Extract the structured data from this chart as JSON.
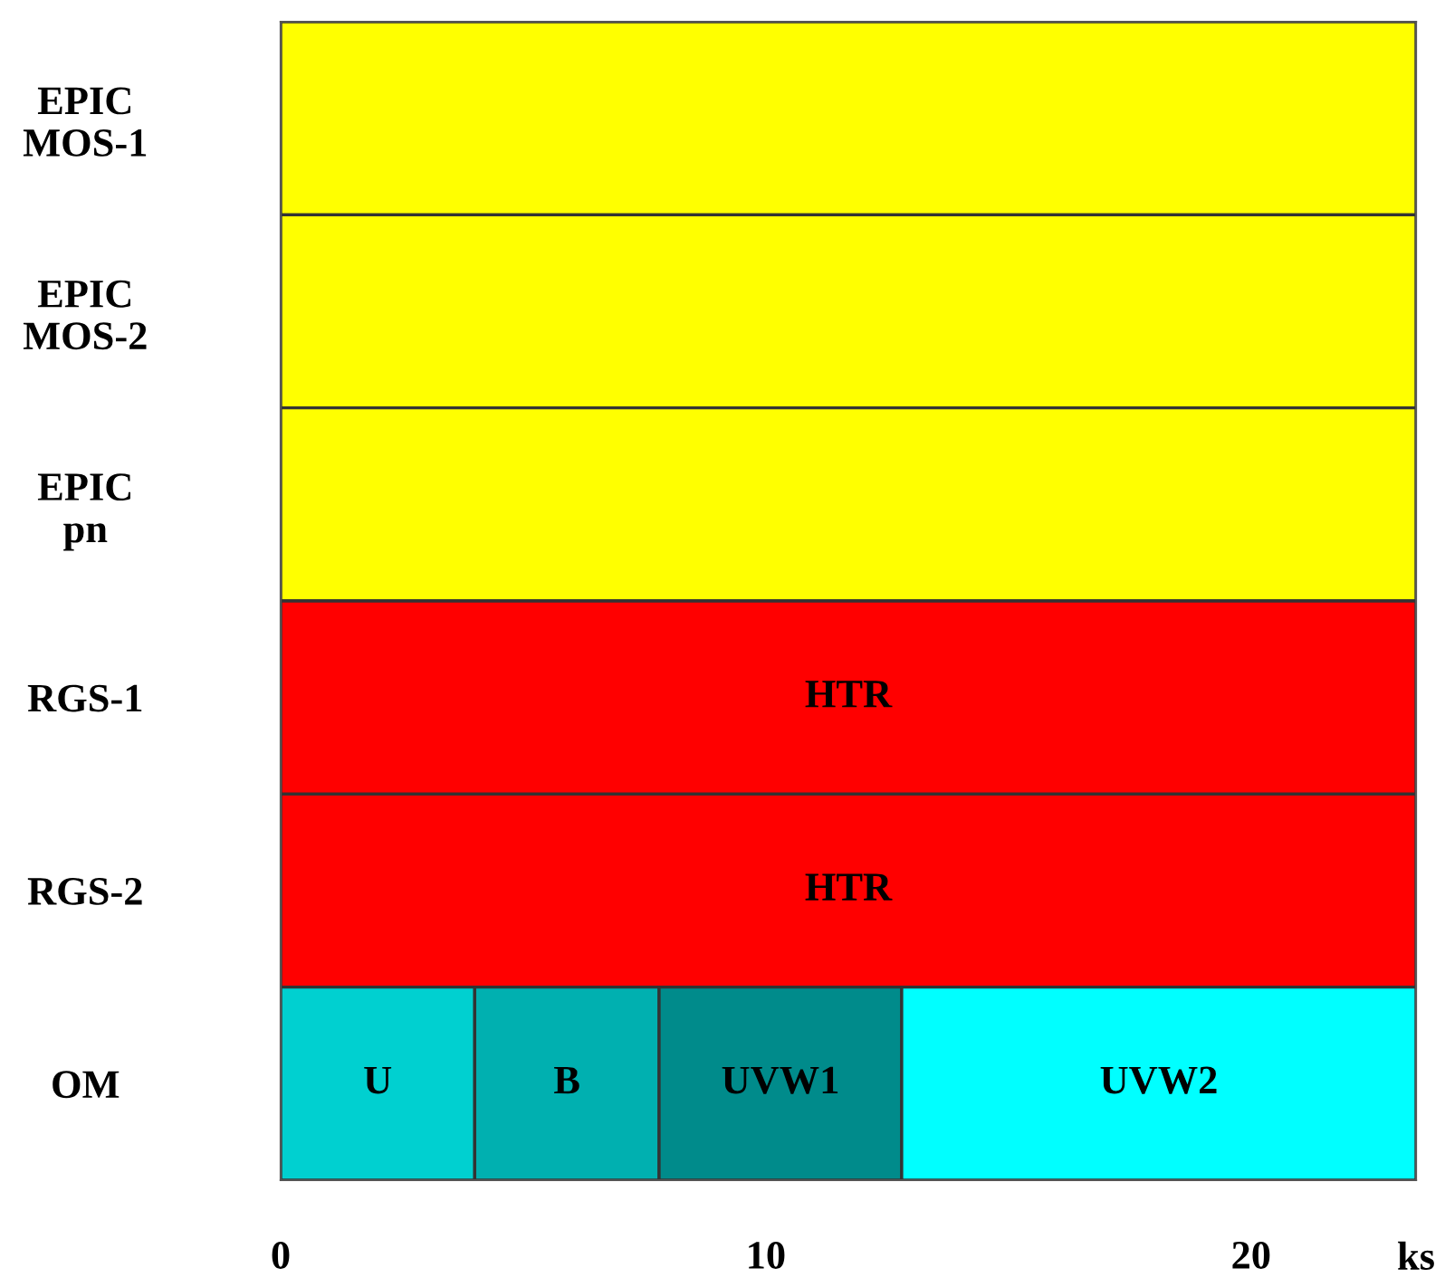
{
  "chart_data": {
    "type": "bar",
    "orientation": "horizontal",
    "stacked": true,
    "categories": [
      "EPIC\nMOS-1",
      "EPIC\nMOS-2",
      "EPIC\npn",
      "RGS-1",
      "RGS-2",
      "OM"
    ],
    "series": [
      {
        "color": "#ffff00",
        "values": [
          23.4,
          23.4,
          23.4,
          null,
          null,
          null
        ]
      },
      {
        "name": "HTR",
        "color": "#ff0000",
        "values": [
          null,
          null,
          null,
          23.4,
          23.4,
          null
        ]
      },
      {
        "name": "U",
        "color": "#00d0d0",
        "values": [
          null,
          null,
          null,
          null,
          null,
          4.0
        ]
      },
      {
        "name": "B",
        "color": "#00b0b0",
        "values": [
          null,
          null,
          null,
          null,
          null,
          3.8
        ]
      },
      {
        "name": "UVW1",
        "color": "#008b8b",
        "values": [
          null,
          null,
          null,
          null,
          null,
          5.0
        ]
      },
      {
        "name": "UVW2",
        "color": "#00ffff",
        "values": [
          null,
          null,
          null,
          null,
          null,
          10.6
        ]
      }
    ],
    "xlim": [
      0,
      23.4
    ],
    "xticks": [
      0,
      10,
      20
    ],
    "xlabel": "ks",
    "grid": false,
    "legend": false
  }
}
